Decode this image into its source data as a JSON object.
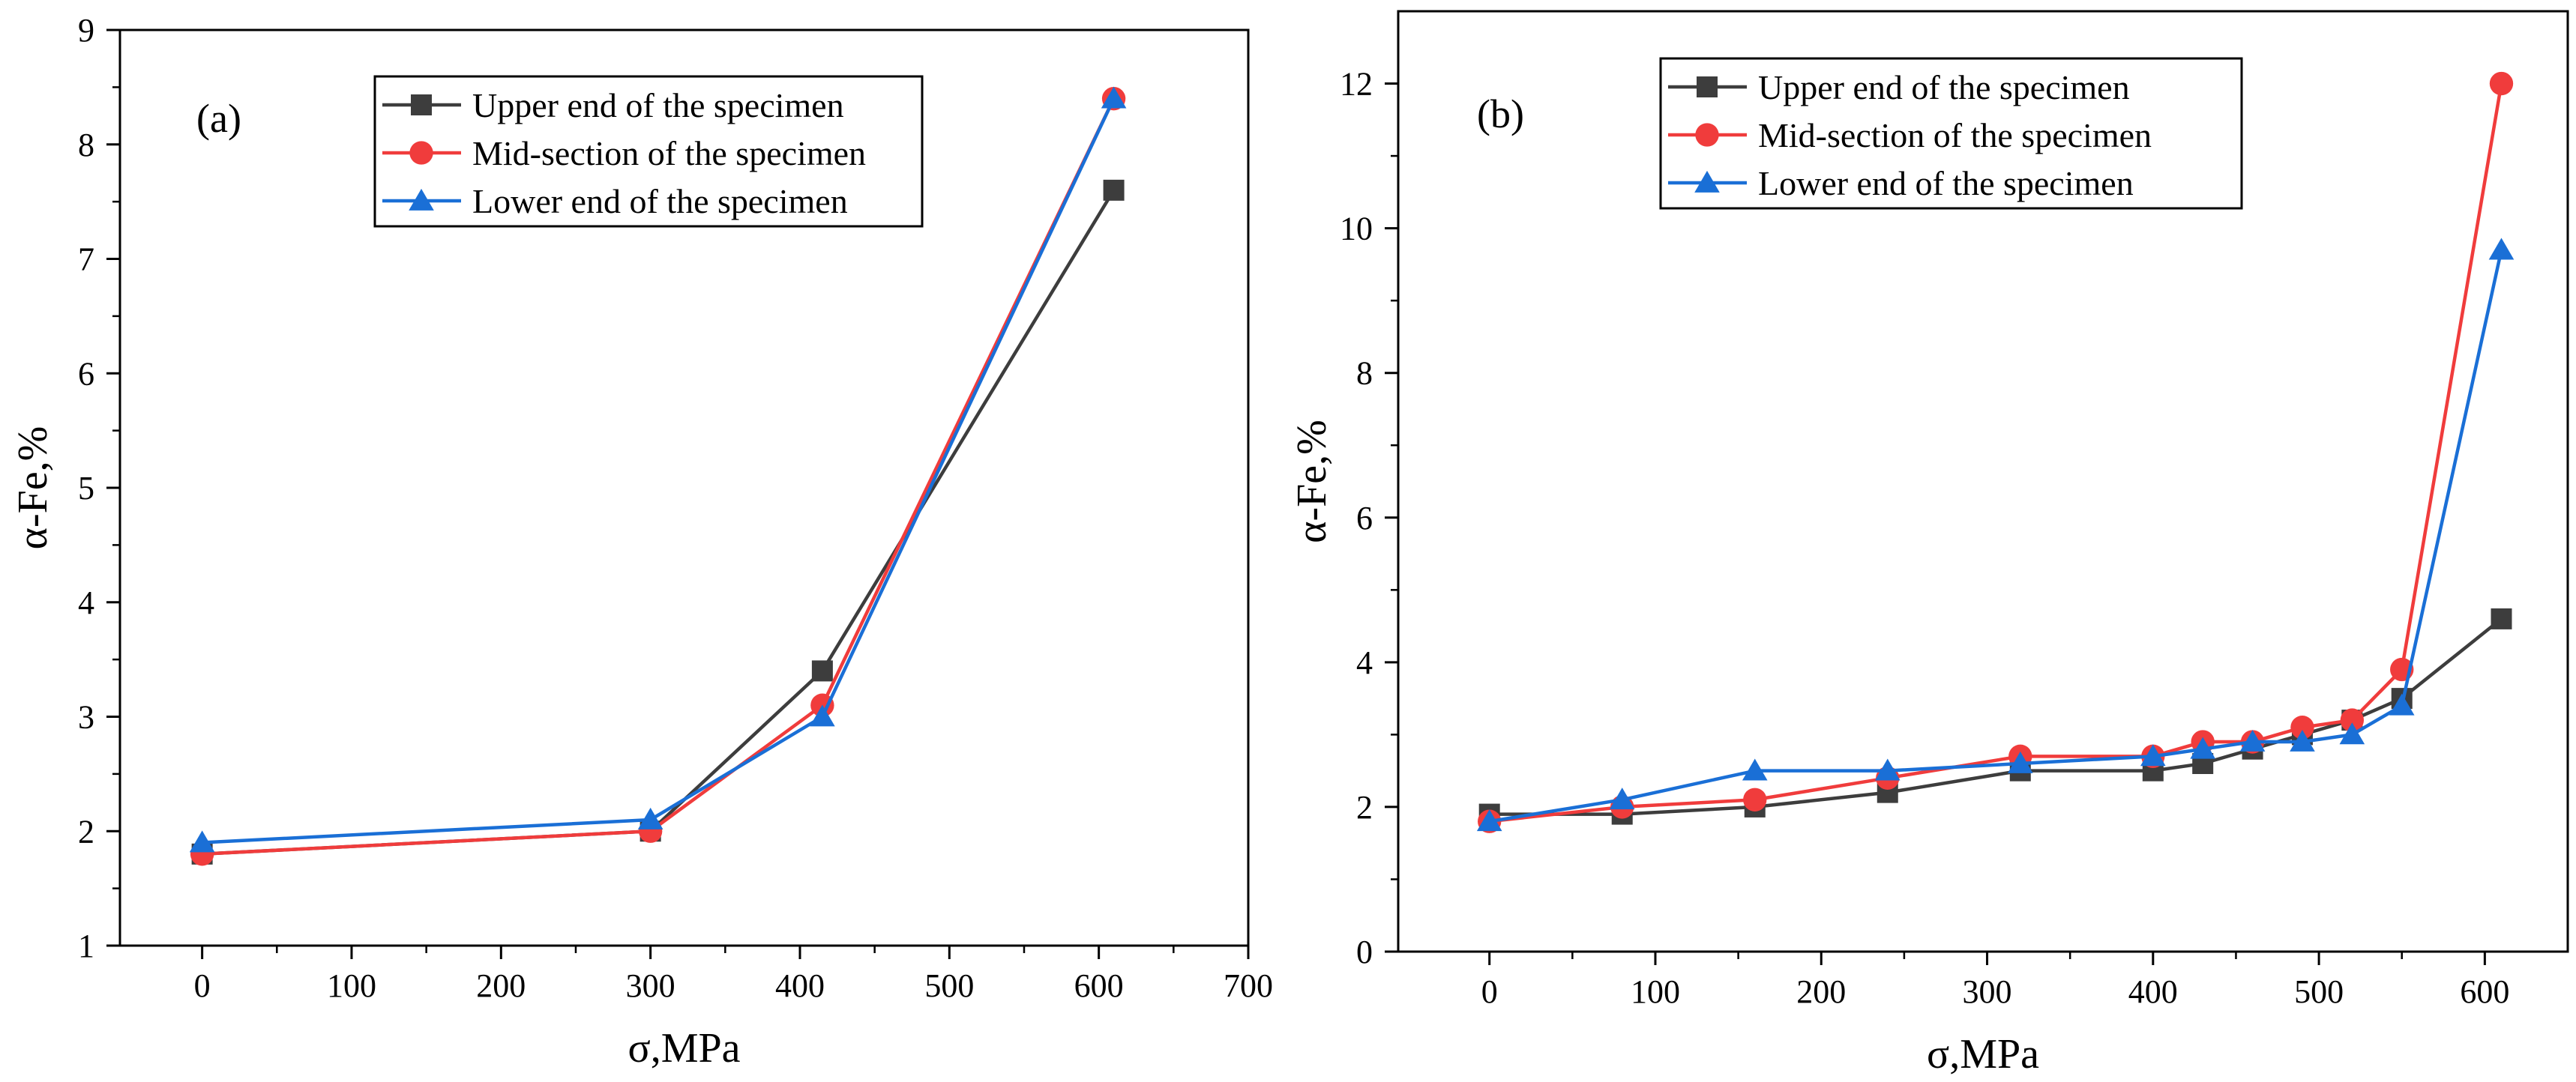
{
  "chart_data": [
    {
      "type": "line",
      "panel_label": "(a)",
      "xlabel": "σ,MPa",
      "ylabel": "α-Fe,%",
      "xlim": [
        -55,
        700
      ],
      "ylim": [
        1,
        9
      ],
      "xticks": [
        0,
        100,
        200,
        300,
        400,
        500,
        600,
        700
      ],
      "yticks": [
        1,
        2,
        3,
        4,
        5,
        6,
        7,
        8,
        9
      ],
      "legend_position": "top-center",
      "series": [
        {
          "name": "Upper end of the specimen",
          "marker": "square",
          "color": "#3d3d3d",
          "x": [
            0,
            300,
            415,
            610
          ],
          "y": [
            1.8,
            2.0,
            3.4,
            7.6
          ]
        },
        {
          "name": "Mid-section of the specimen",
          "marker": "circle",
          "color": "#f03c3c",
          "x": [
            0,
            300,
            415,
            610
          ],
          "y": [
            1.8,
            2.0,
            3.1,
            8.4
          ]
        },
        {
          "name": "Lower end of the specimen",
          "marker": "triangle",
          "color": "#1a6fd6",
          "x": [
            0,
            300,
            415,
            610
          ],
          "y": [
            1.9,
            2.1,
            3.0,
            8.4
          ]
        }
      ]
    },
    {
      "type": "line",
      "panel_label": "(b)",
      "xlabel": "σ,MPa",
      "ylabel": "α-Fe,%",
      "xlim": [
        -55,
        650
      ],
      "ylim": [
        0,
        13
      ],
      "xticks": [
        0,
        100,
        200,
        300,
        400,
        500,
        600
      ],
      "yticks": [
        0,
        2,
        4,
        6,
        8,
        10,
        12
      ],
      "legend_position": "top-center",
      "series": [
        {
          "name": "Upper end of the specimen",
          "marker": "square",
          "color": "#3d3d3d",
          "x": [
            0,
            80,
            160,
            240,
            320,
            400,
            430,
            460,
            490,
            520,
            550,
            610
          ],
          "y": [
            1.9,
            1.9,
            2.0,
            2.2,
            2.5,
            2.5,
            2.6,
            2.8,
            3.0,
            3.2,
            3.5,
            4.6
          ]
        },
        {
          "name": "Mid-section of the specimen",
          "marker": "circle",
          "color": "#f03c3c",
          "x": [
            0,
            80,
            160,
            240,
            320,
            400,
            430,
            460,
            490,
            520,
            550,
            610
          ],
          "y": [
            1.8,
            2.0,
            2.1,
            2.4,
            2.7,
            2.7,
            2.9,
            2.9,
            3.1,
            3.2,
            3.9,
            12.0
          ]
        },
        {
          "name": "Lower end of the specimen",
          "marker": "triangle",
          "color": "#1a6fd6",
          "x": [
            0,
            80,
            160,
            240,
            320,
            400,
            430,
            460,
            490,
            520,
            550,
            610
          ],
          "y": [
            1.8,
            2.1,
            2.5,
            2.5,
            2.6,
            2.7,
            2.8,
            2.9,
            2.9,
            3.0,
            3.4,
            9.7
          ]
        }
      ]
    }
  ]
}
